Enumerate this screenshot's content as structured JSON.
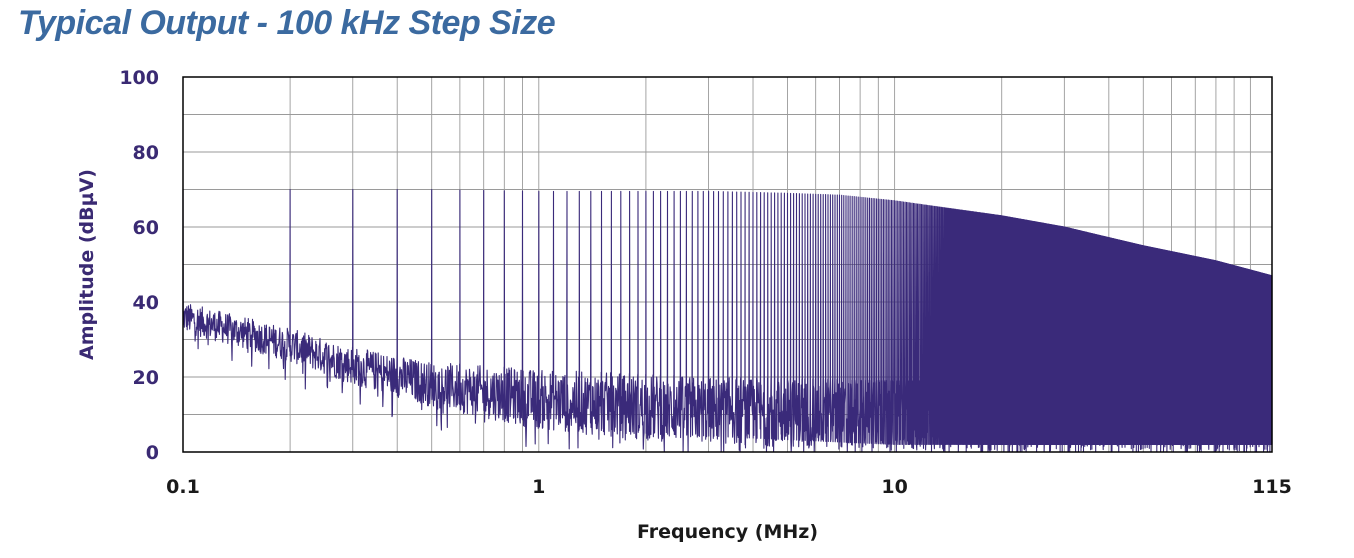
{
  "chart_data": {
    "type": "line",
    "title": "Typical Output - 100 kHz Step Size",
    "xlabel": "Frequency (MHz)",
    "ylabel": "Amplitude (dBµV)",
    "x_scale": "log",
    "xlim": [
      0.1,
      115
    ],
    "ylim": [
      0,
      100
    ],
    "x_ticks": [
      {
        "value": 0.1,
        "label": "0.1"
      },
      {
        "value": 1,
        "label": "1"
      },
      {
        "value": 10,
        "label": "10"
      },
      {
        "value": 115,
        "label": "115"
      }
    ],
    "y_ticks": [
      {
        "value": 0,
        "label": "0"
      },
      {
        "value": 20,
        "label": "20"
      },
      {
        "value": 40,
        "label": "40"
      },
      {
        "value": 60,
        "label": "60"
      },
      {
        "value": 80,
        "label": "80"
      },
      {
        "value": 100,
        "label": "100"
      }
    ],
    "grid": true,
    "legend": "none",
    "series": [
      {
        "color": "#3a2a7a",
        "description_points": {
          "peak_envelope": [
            [
              0.1,
              70
            ],
            [
              0.2,
              70
            ],
            [
              0.5,
              70
            ],
            [
              1,
              69.5
            ],
            [
              2,
              69.5
            ],
            [
              3,
              69.5
            ],
            [
              5,
              69
            ],
            [
              7,
              68.5
            ],
            [
              10,
              67
            ],
            [
              20,
              63
            ],
            [
              30,
              60
            ],
            [
              50,
              55
            ],
            [
              80,
              51
            ],
            [
              115,
              47
            ]
          ],
          "noise_floor_upper": [
            [
              0.1,
              40
            ],
            [
              0.2,
              33
            ],
            [
              0.3,
              28
            ],
            [
              0.5,
              24
            ],
            [
              1,
              22
            ],
            [
              3,
              20
            ],
            [
              10,
              19
            ],
            [
              30,
              19
            ],
            [
              115,
              18
            ]
          ],
          "noise_floor_lower": [
            [
              0.1,
              32
            ],
            [
              0.2,
              24
            ],
            [
              0.3,
              18
            ],
            [
              0.5,
              12
            ],
            [
              1,
              6
            ],
            [
              2,
              3
            ],
            [
              10,
              0
            ],
            [
              115,
              0
            ]
          ]
        },
        "step_mhz": 0.1
      }
    ]
  }
}
